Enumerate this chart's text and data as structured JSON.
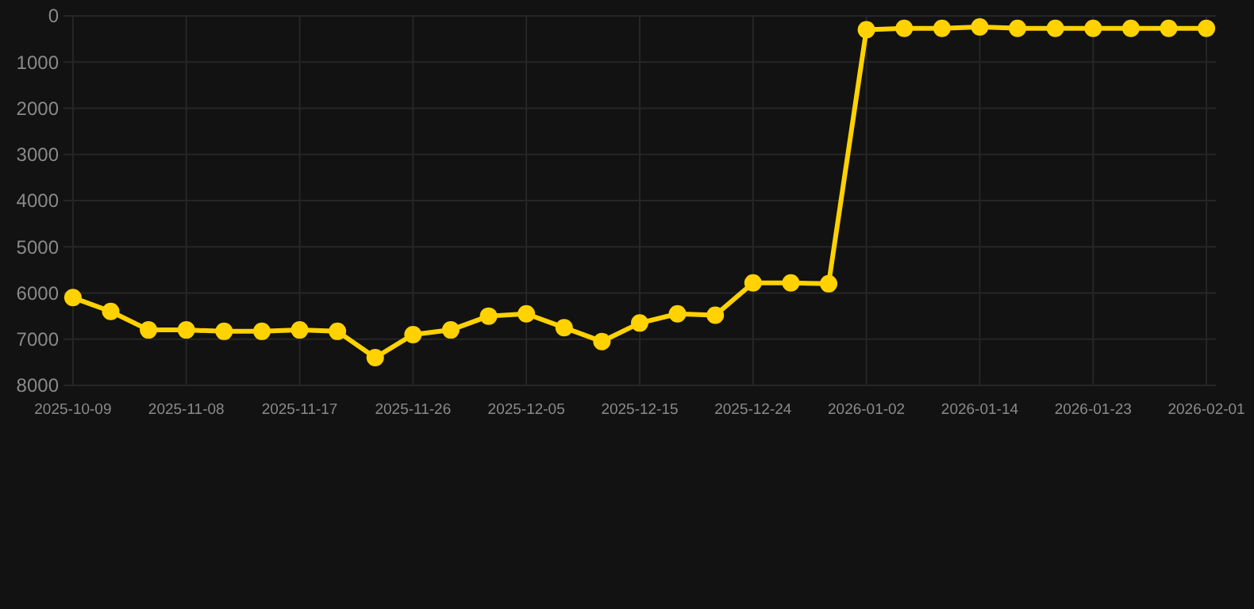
{
  "chart_data": {
    "type": "line",
    "categories": [
      "2025-10-09",
      null,
      null,
      "2025-11-08",
      null,
      null,
      "2025-11-17",
      null,
      null,
      "2025-11-26",
      null,
      null,
      "2025-12-05",
      null,
      null,
      "2025-12-15",
      null,
      null,
      "2025-12-24",
      null,
      null,
      "2026-01-02",
      null,
      null,
      "2026-01-14",
      null,
      null,
      "2026-01-23",
      null,
      null,
      "2026-02-01"
    ],
    "series": [
      {
        "color": "#ffd200",
        "values": [
          6100,
          6400,
          6800,
          6800,
          6830,
          6830,
          6800,
          6830,
          7400,
          6900,
          6800,
          6500,
          6450,
          6750,
          7050,
          6650,
          6450,
          6480,
          5780,
          5780,
          5800,
          300,
          270,
          270,
          240,
          270,
          270,
          270,
          270,
          270,
          270
        ]
      }
    ],
    "ylim": [
      8000,
      0
    ],
    "yticks": [
      0,
      1000,
      2000,
      3000,
      4000,
      5000,
      6000,
      7000,
      8000
    ],
    "grid": true,
    "marker": "circle",
    "line_style": "solid"
  }
}
